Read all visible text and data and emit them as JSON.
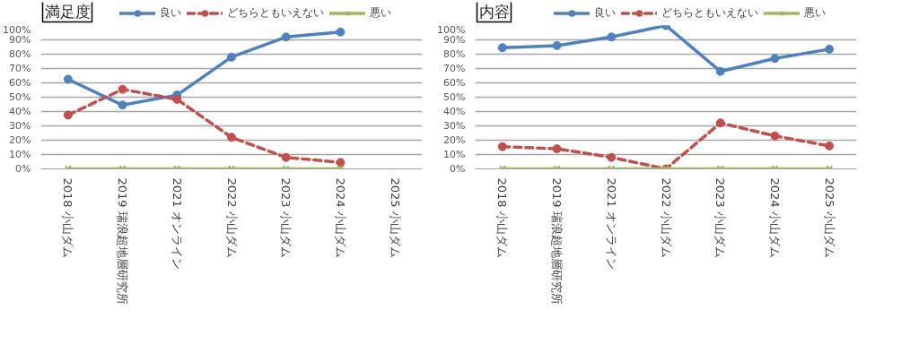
{
  "chart_data": [
    {
      "type": "line",
      "title": "満足度",
      "categories": [
        "2018 小山ダム",
        "2019 瑞浪超地層研究所",
        "2021 オンライン",
        "2022 小山ダム",
        "2023 小山ダム",
        "2024 小山ダム",
        "2025 小山ダム"
      ],
      "series": [
        {
          "name": "良い",
          "color": "#4f81bd",
          "marker": "circle",
          "line_style": "solid",
          "values": [
            62.5,
            44.5,
            51.5,
            78,
            92,
            95.5,
            null
          ]
        },
        {
          "name": "どちらともいえない",
          "color": "#c0504d",
          "marker": "circle",
          "line_style": "dashed",
          "values": [
            37.5,
            55.5,
            48.5,
            22,
            8,
            4.5,
            null
          ]
        },
        {
          "name": "悪い",
          "color": "#9bbb59",
          "marker": "cross",
          "line_style": "solid",
          "values": [
            0,
            0,
            0,
            0,
            0,
            0,
            null
          ]
        }
      ],
      "ylim": [
        0,
        100
      ],
      "yticks": [
        {
          "value": 0,
          "label": "0%"
        },
        {
          "value": 10,
          "label": "10%"
        },
        {
          "value": 20,
          "label": "20%"
        },
        {
          "value": 30,
          "label": "30%"
        },
        {
          "value": 40,
          "label": "40%"
        },
        {
          "value": 50,
          "label": "50%"
        },
        {
          "value": 60,
          "label": "60%"
        },
        {
          "value": 70,
          "label": "70%"
        },
        {
          "value": 80,
          "label": "80%"
        },
        {
          "value": 90,
          "label": "90%"
        },
        {
          "value": 100,
          "label": "100%"
        }
      ],
      "grid": "y",
      "legend": "top"
    },
    {
      "type": "line",
      "title": "内容",
      "categories": [
        "2018 小山ダム",
        "2019 瑞浪超地層研究所",
        "2021 オンライン",
        "2022 小山ダム",
        "2023 小山ダム",
        "2024 小山ダム",
        "2025 小山ダム"
      ],
      "series": [
        {
          "name": "良い",
          "color": "#4f81bd",
          "marker": "circle",
          "line_style": "solid",
          "values": [
            84.5,
            86,
            92,
            100,
            68,
            77,
            83.5
          ]
        },
        {
          "name": "どちらともいえない",
          "color": "#c0504d",
          "marker": "circle",
          "line_style": "dashed",
          "values": [
            15.5,
            14,
            8,
            0,
            32,
            23,
            16
          ]
        },
        {
          "name": "悪い",
          "color": "#9bbb59",
          "marker": "cross",
          "line_style": "solid",
          "values": [
            0,
            0,
            0,
            0,
            0,
            0,
            0
          ]
        }
      ],
      "ylim": [
        0,
        100
      ],
      "yticks": [
        {
          "value": 0,
          "label": "0%"
        },
        {
          "value": 10,
          "label": "10%"
        },
        {
          "value": 20,
          "label": "20%"
        },
        {
          "value": 30,
          "label": "30%"
        },
        {
          "value": 40,
          "label": "40%"
        },
        {
          "value": 50,
          "label": "50%"
        },
        {
          "value": 60,
          "label": "60%"
        },
        {
          "value": 70,
          "label": "70%"
        },
        {
          "value": 80,
          "label": "80%"
        },
        {
          "value": 90,
          "label": "90%"
        },
        {
          "value": 100,
          "label": "100%"
        }
      ],
      "grid": "y",
      "legend": "top"
    }
  ]
}
